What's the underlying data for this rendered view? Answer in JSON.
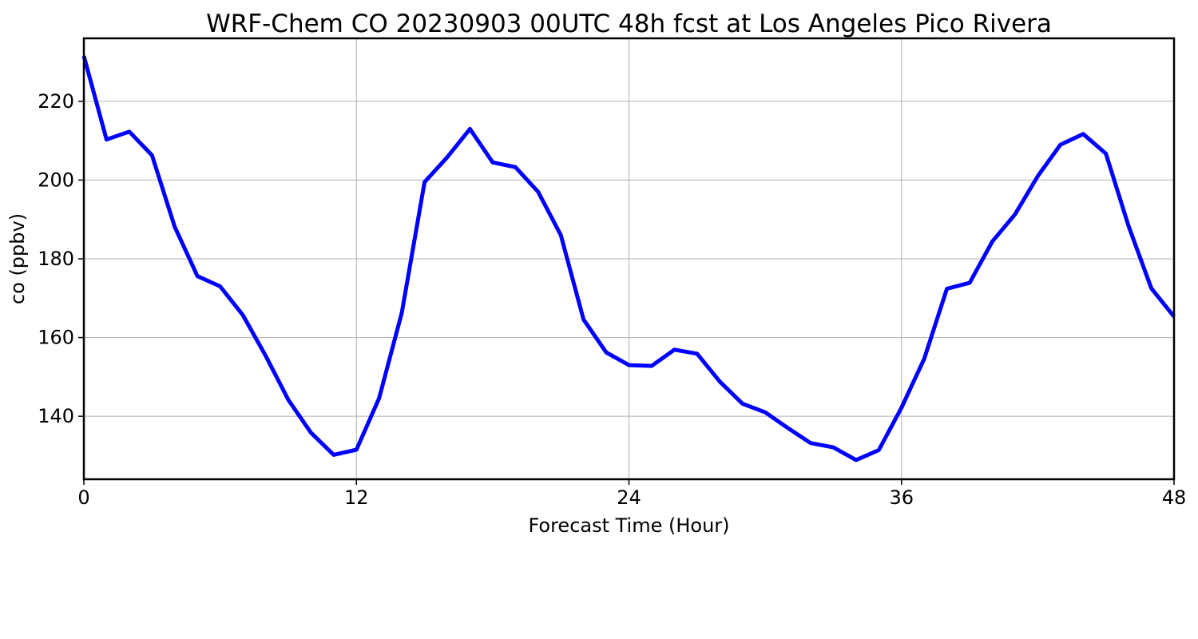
{
  "chart_data": {
    "type": "line",
    "title": "WRF-Chem CO  20230903 00UTC 48h fcst at Los Angeles Pico Rivera",
    "xlabel": "Forecast Time (Hour)",
    "ylabel": "co  (ppbv)",
    "xlim": [
      0,
      48
    ],
    "ylim": [
      124,
      236
    ],
    "xticks": [
      0,
      12,
      24,
      36,
      48
    ],
    "yticks": [
      140,
      160,
      180,
      200,
      220
    ],
    "grid": true,
    "series": [
      {
        "color": "#0000ff",
        "x": [
          0,
          1,
          2,
          3,
          4,
          5,
          6,
          7,
          8,
          9,
          10,
          11,
          12,
          13,
          14,
          15,
          16,
          17,
          18,
          19,
          20,
          21,
          22,
          23,
          24,
          25,
          26,
          27,
          28,
          29,
          30,
          31,
          32,
          33,
          34,
          35,
          36,
          37,
          38,
          39,
          40,
          41,
          42,
          43,
          44,
          45,
          46,
          47,
          48
        ],
        "values": [
          231.5,
          210.3,
          212.3,
          206.3,
          188.1,
          175.6,
          173.0,
          165.7,
          155.4,
          144.2,
          135.8,
          130.2,
          131.5,
          144.6,
          166.3,
          199.5,
          205.8,
          213.0,
          204.5,
          203.3,
          197.0,
          186.0,
          164.6,
          156.2,
          153.0,
          152.8,
          156.9,
          155.9,
          148.8,
          143.2,
          141.0,
          137.0,
          133.2,
          132.1,
          128.9,
          131.4,
          142.2,
          154.6,
          172.4,
          173.9,
          184.4,
          191.3,
          201.0,
          209.0,
          211.7,
          206.7,
          188.3,
          172.5,
          165.3
        ]
      }
    ]
  }
}
